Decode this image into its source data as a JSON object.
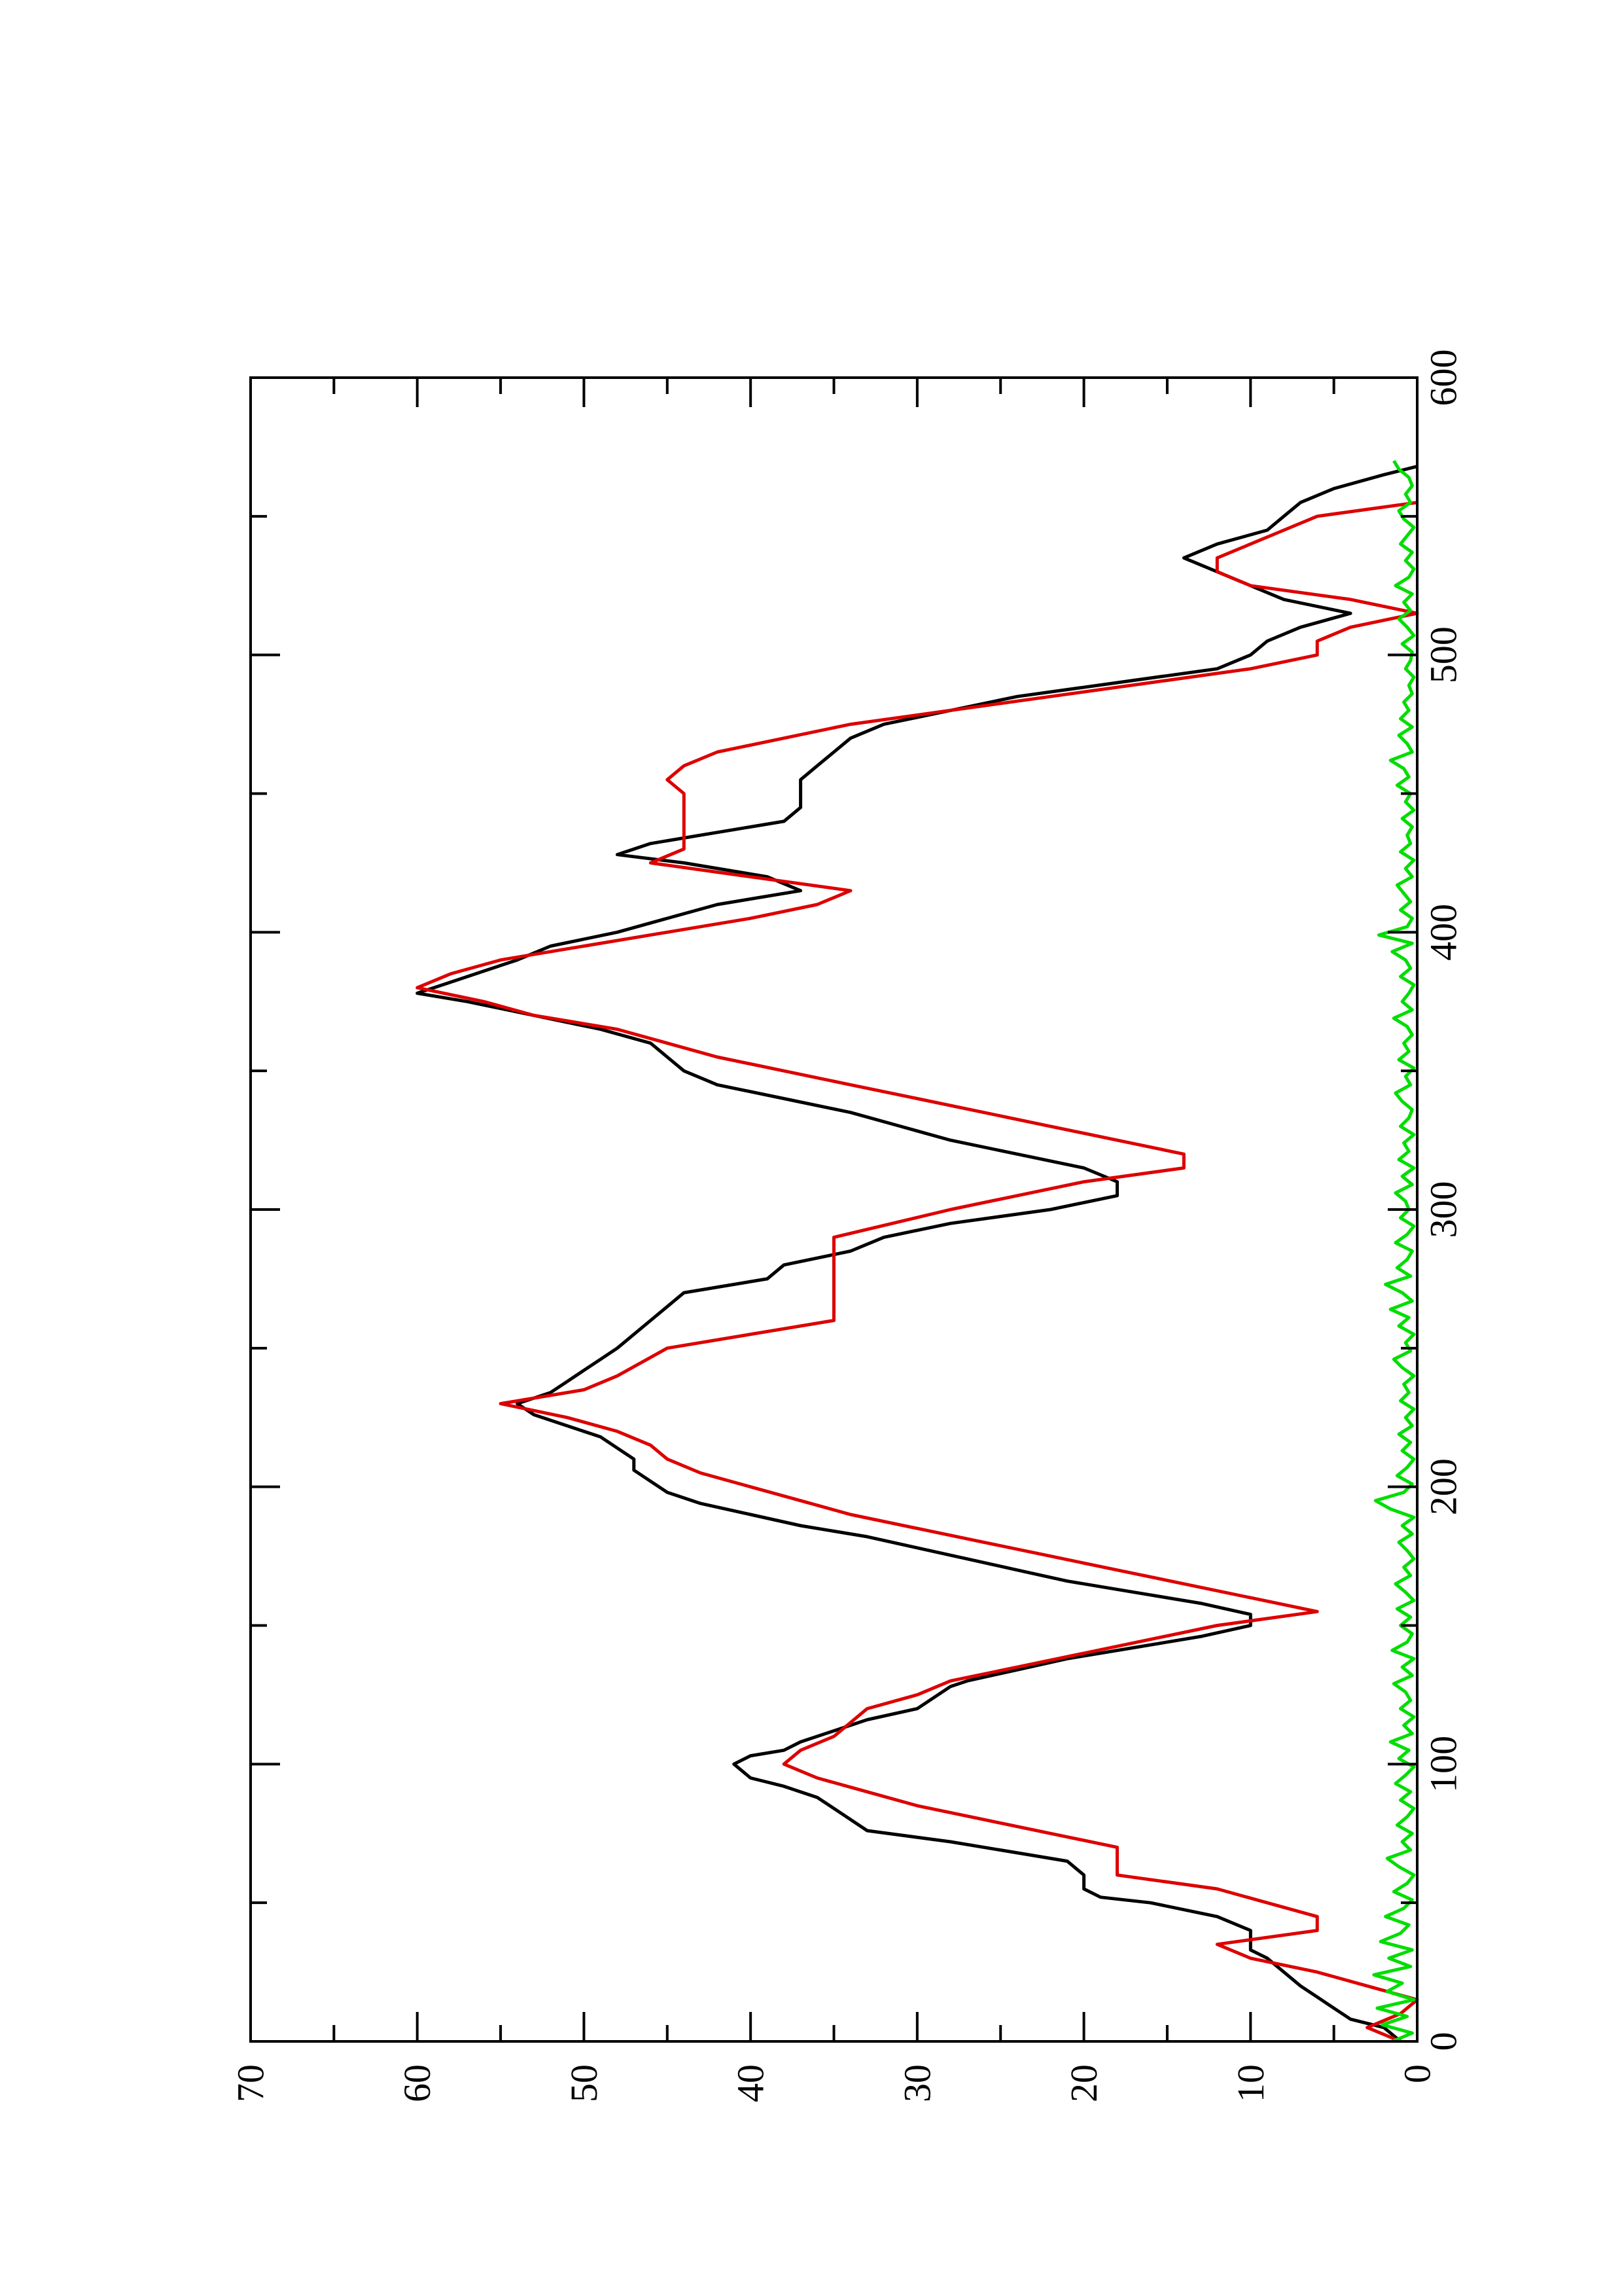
{
  "chart_data": {
    "type": "line",
    "title": "",
    "xlabel": "",
    "ylabel": "",
    "xlim": [
      0,
      600
    ],
    "ylim": [
      0,
      70
    ],
    "x_ticks": [
      {
        "value": 0,
        "label": "0"
      },
      {
        "value": 100,
        "label": "100"
      },
      {
        "value": 200,
        "label": "200"
      },
      {
        "value": 300,
        "label": "300"
      },
      {
        "value": 400,
        "label": "400"
      },
      {
        "value": 500,
        "label": "500"
      },
      {
        "value": 600,
        "label": "600"
      }
    ],
    "x_minor_ticks": [
      50,
      150,
      250,
      350,
      450,
      550
    ],
    "y_ticks": [
      {
        "value": 0,
        "label": "0"
      },
      {
        "value": 10,
        "label": "10"
      },
      {
        "value": 20,
        "label": "20"
      },
      {
        "value": 30,
        "label": "30"
      },
      {
        "value": 40,
        "label": "40"
      },
      {
        "value": 50,
        "label": "50"
      },
      {
        "value": 60,
        "label": "60"
      },
      {
        "value": 70,
        "label": "70"
      }
    ],
    "y_minor_ticks": [
      5,
      15,
      25,
      35,
      45,
      55,
      65
    ],
    "orientation": "rotated 90 degrees counter-clockwise (page in landscape)",
    "grid": false,
    "legend": "none",
    "series": [
      {
        "color": "#000000",
        "x": [
          0,
          5,
          8,
          12,
          16,
          20,
          25,
          30,
          33,
          37,
          40,
          45,
          50,
          52,
          55,
          60,
          65,
          68,
          72,
          76,
          80,
          84,
          88,
          92,
          95,
          100,
          103,
          105,
          108,
          112,
          116,
          120,
          124,
          128,
          130,
          134,
          138,
          142,
          146,
          150,
          154,
          158,
          162,
          166,
          170,
          174,
          178,
          182,
          186,
          190,
          194,
          198,
          202,
          206,
          210,
          214,
          218,
          222,
          226,
          230,
          234,
          238,
          242,
          246,
          250,
          255,
          260,
          265,
          270,
          275,
          280,
          285,
          290,
          295,
          300,
          305,
          310,
          315,
          320,
          325,
          330,
          335,
          340,
          345,
          350,
          355,
          360,
          365,
          370,
          375,
          378,
          382,
          386,
          390,
          395,
          400,
          405,
          410,
          415,
          420,
          425,
          428,
          432,
          436,
          440,
          445,
          450,
          455,
          460,
          465,
          470,
          475,
          480,
          485,
          490,
          495,
          500,
          505,
          510,
          515,
          520,
          525,
          530,
          535,
          540,
          545,
          550,
          555,
          560,
          565,
          568
        ],
        "y": [
          1,
          2,
          4,
          5,
          6,
          7,
          8,
          9,
          10,
          10,
          10,
          12,
          16,
          19,
          20,
          20,
          21,
          24,
          28,
          33,
          34,
          35,
          36,
          38,
          40,
          41,
          40,
          38,
          37,
          35,
          33,
          30,
          29,
          28,
          27,
          24,
          21,
          17,
          13,
          10,
          10,
          13,
          17,
          21,
          24,
          27,
          30,
          33,
          37,
          40,
          43,
          45,
          46,
          47,
          47,
          48,
          49,
          51,
          53,
          54,
          52,
          51,
          50,
          49,
          48,
          47,
          46,
          45,
          44,
          39,
          38,
          34,
          32,
          28,
          22,
          18,
          18,
          20,
          24,
          28,
          31,
          34,
          38,
          42,
          44,
          45,
          46,
          49,
          53,
          57,
          60,
          58,
          56,
          54,
          52,
          48,
          45,
          42,
          37,
          39,
          44,
          48,
          46,
          42,
          38,
          37,
          37,
          37,
          36,
          35,
          34,
          32,
          28,
          24,
          18,
          12,
          10,
          9,
          7,
          4,
          8,
          10,
          12,
          14,
          12,
          9,
          8,
          7,
          5,
          2,
          0
        ]
      },
      {
        "color": "#dd0000",
        "x": [
          0,
          5,
          10,
          15,
          20,
          25,
          30,
          35,
          40,
          45,
          50,
          55,
          60,
          65,
          70,
          75,
          80,
          85,
          90,
          95,
          100,
          105,
          110,
          115,
          120,
          125,
          130,
          135,
          140,
          145,
          150,
          155,
          160,
          165,
          170,
          175,
          180,
          185,
          190,
          195,
          200,
          205,
          210,
          215,
          220,
          225,
          230,
          235,
          240,
          250,
          260,
          270,
          280,
          290,
          300,
          305,
          310,
          315,
          320,
          325,
          330,
          335,
          340,
          345,
          350,
          355,
          360,
          365,
          370,
          375,
          380,
          385,
          390,
          395,
          400,
          405,
          410,
          415,
          420,
          425,
          430,
          435,
          440,
          445,
          450,
          455,
          460,
          465,
          470,
          475,
          480,
          485,
          490,
          495,
          500,
          505,
          510,
          515,
          520,
          525,
          530,
          535,
          540,
          545,
          550,
          555
        ],
        "y": [
          1,
          3,
          1,
          0,
          3,
          6,
          10,
          12,
          6,
          6,
          9,
          12,
          18,
          18,
          18,
          22,
          26,
          30,
          33,
          36,
          38,
          37,
          35,
          34,
          33,
          30,
          28,
          24,
          20,
          16,
          12,
          6,
          10,
          14,
          18,
          22,
          26,
          30,
          34,
          37,
          40,
          43,
          45,
          46,
          48,
          51,
          55,
          50,
          48,
          45,
          35,
          35,
          35,
          35,
          28,
          24,
          20,
          14,
          14,
          18,
          22,
          26,
          30,
          34,
          38,
          42,
          45,
          48,
          53,
          56,
          60,
          58,
          55,
          50,
          45,
          40,
          36,
          34,
          40,
          46,
          44,
          44,
          44,
          44,
          44,
          45,
          44,
          42,
          38,
          34,
          28,
          22,
          16,
          10,
          6,
          6,
          4,
          0,
          4,
          10,
          12,
          12,
          10,
          8,
          6,
          0
        ]
      },
      {
        "color": "#00dd00",
        "x": [
          0,
          3,
          6,
          9,
          12,
          15,
          18,
          21,
          24,
          27,
          30,
          33,
          36,
          39,
          42,
          45,
          48,
          51,
          54,
          57,
          60,
          63,
          66,
          69,
          72,
          75,
          78,
          81,
          84,
          87,
          90,
          93,
          96,
          99,
          102,
          105,
          108,
          111,
          114,
          117,
          120,
          123,
          126,
          129,
          132,
          135,
          138,
          141,
          144,
          147,
          150,
          153,
          156,
          159,
          162,
          165,
          168,
          171,
          174,
          177,
          180,
          183,
          186,
          189,
          192,
          195,
          198,
          201,
          204,
          207,
          210,
          213,
          216,
          219,
          222,
          225,
          228,
          231,
          234,
          237,
          240,
          243,
          246,
          249,
          252,
          255,
          258,
          261,
          264,
          267,
          270,
          273,
          276,
          279,
          282,
          285,
          288,
          291,
          294,
          297,
          300,
          303,
          306,
          309,
          312,
          315,
          318,
          321,
          324,
          327,
          330,
          333,
          336,
          339,
          342,
          345,
          348,
          351,
          354,
          357,
          360,
          363,
          366,
          369,
          372,
          375,
          378,
          381,
          384,
          387,
          390,
          393,
          396,
          399,
          402,
          405,
          408,
          411,
          414,
          417,
          420,
          423,
          426,
          429,
          432,
          435,
          438,
          441,
          444,
          447,
          450,
          453,
          456,
          459,
          462,
          465,
          468,
          471,
          474,
          477,
          480,
          483,
          486,
          489,
          492,
          495,
          498,
          501,
          504,
          507,
          510,
          513,
          516,
          519,
          522,
          525,
          528,
          531,
          534,
          537,
          540,
          543,
          546,
          549,
          552,
          555,
          558,
          561,
          564,
          567,
          570
        ],
        "y": [
          1.5,
          0.3,
          2.1,
          0.6,
          2.4,
          0.2,
          1.8,
          0.9,
          2.6,
          0.4,
          1.7,
          0.3,
          2.2,
          1.0,
          0.5,
          1.9,
          0.8,
          0.3,
          1.4,
          0.6,
          0.2,
          1.1,
          1.8,
          0.4,
          0.9,
          0.3,
          1.2,
          0.6,
          0.2,
          1.0,
          0.4,
          1.3,
          0.7,
          0.2,
          1.1,
          0.5,
          1.6,
          0.3,
          0.8,
          0.2,
          1.0,
          0.4,
          0.7,
          1.4,
          0.3,
          0.9,
          0.2,
          1.5,
          0.6,
          0.3,
          1.0,
          0.4,
          1.2,
          0.2,
          0.7,
          1.3,
          0.4,
          0.8,
          0.2,
          0.6,
          1.1,
          0.3,
          0.9,
          0.2,
          1.6,
          2.5,
          0.8,
          0.3,
          1.2,
          0.6,
          0.2,
          0.9,
          0.4,
          1.1,
          0.3,
          0.7,
          0.2,
          1.0,
          0.5,
          0.8,
          0.2,
          0.9,
          1.4,
          0.4,
          0.7,
          0.2,
          1.1,
          0.5,
          1.6,
          0.3,
          0.9,
          1.9,
          0.4,
          1.2,
          0.6,
          0.3,
          1.3,
          0.6,
          0.2,
          1.0,
          0.5,
          0.7,
          1.3,
          0.3,
          0.9,
          0.2,
          1.1,
          0.5,
          0.8,
          0.2,
          1.0,
          0.5,
          0.3,
          0.9,
          1.3,
          0.4,
          0.7,
          0.2,
          1.1,
          0.5,
          0.8,
          0.3,
          0.6,
          1.4,
          0.3,
          0.9,
          0.5,
          0.2,
          1.0,
          0.4,
          0.7,
          1.5,
          0.3,
          2.3,
          0.6,
          0.3,
          1.0,
          0.4,
          0.8,
          1.2,
          0.3,
          0.7,
          0.2,
          1.0,
          0.4,
          0.6,
          0.3,
          0.9,
          0.2,
          0.7,
          0.4,
          1.2,
          0.5,
          0.8,
          1.6,
          0.3,
          0.6,
          1.1,
          0.3,
          1.0,
          0.5,
          0.8,
          0.3,
          0.5,
          0.2,
          0.7,
          0.4,
          0.3,
          0.9,
          0.2,
          0.6,
          1.1,
          0.4,
          0.8,
          0.3,
          1.3,
          0.5,
          0.2,
          0.7,
          0.3,
          1.0,
          0.6,
          0.2,
          0.8,
          1.1,
          0.4,
          0.7,
          0.3,
          0.5,
          1.1,
          1.4
        ]
      }
    ]
  }
}
